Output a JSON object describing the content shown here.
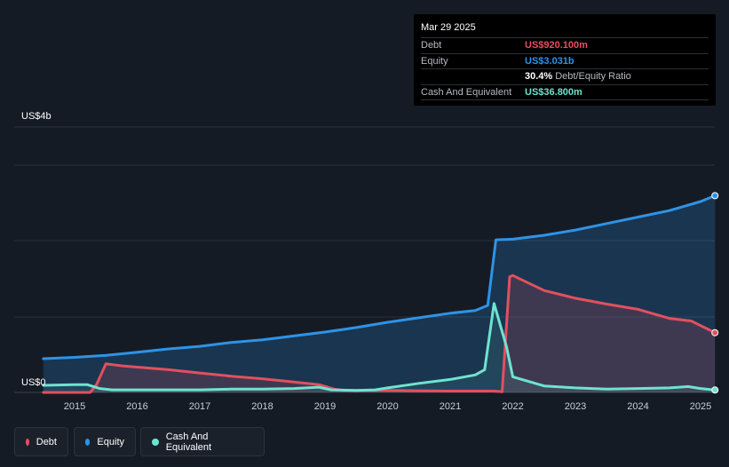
{
  "tooltip": {
    "date": "Mar 29 2025",
    "debt_label": "Debt",
    "debt_value": "US$920.100m",
    "equity_label": "Equity",
    "equity_value": "US$3.031b",
    "ratio_value": "30.4%",
    "ratio_label": "Debt/Equity Ratio",
    "cash_label": "Cash And Equivalent",
    "cash_value": "US$36.800m"
  },
  "legend": {
    "debt": "Debt",
    "equity": "Equity",
    "cash": "Cash And Equivalent"
  },
  "colors": {
    "debt": "#e2505f",
    "equity": "#2e93e6",
    "cash": "#6fe3d0",
    "background": "#151b24"
  },
  "chart_data": {
    "type": "area",
    "ylabel_top": "US$4b",
    "ylabel_bottom": "US$0",
    "ylim": [
      0,
      3.5
    ],
    "xlim": [
      2014.5,
      2025.25
    ],
    "x_ticks": [
      "2015",
      "2016",
      "2017",
      "2018",
      "2019",
      "2020",
      "2021",
      "2022",
      "2023",
      "2024",
      "2025"
    ],
    "grid": true,
    "series": [
      {
        "name": "Equity",
        "unit": "US$b",
        "points": [
          [
            2014.5,
            0.52
          ],
          [
            2015.0,
            0.54
          ],
          [
            2015.5,
            0.57
          ],
          [
            2016.0,
            0.62
          ],
          [
            2016.5,
            0.67
          ],
          [
            2017.0,
            0.71
          ],
          [
            2017.5,
            0.77
          ],
          [
            2018.0,
            0.81
          ],
          [
            2018.5,
            0.87
          ],
          [
            2019.0,
            0.93
          ],
          [
            2019.5,
            1.0
          ],
          [
            2020.0,
            1.08
          ],
          [
            2020.5,
            1.15
          ],
          [
            2021.0,
            1.22
          ],
          [
            2021.4,
            1.26
          ],
          [
            2021.6,
            1.34
          ],
          [
            2021.73,
            2.35
          ],
          [
            2022.0,
            2.36
          ],
          [
            2022.5,
            2.42
          ],
          [
            2023.0,
            2.5
          ],
          [
            2023.5,
            2.6
          ],
          [
            2024.0,
            2.7
          ],
          [
            2024.5,
            2.8
          ],
          [
            2025.0,
            2.94
          ],
          [
            2025.23,
            3.03
          ]
        ]
      },
      {
        "name": "Debt",
        "unit": "US$b",
        "points": [
          [
            2014.5,
            0.0
          ],
          [
            2015.25,
            0.0
          ],
          [
            2015.35,
            0.12
          ],
          [
            2015.5,
            0.44
          ],
          [
            2015.75,
            0.41
          ],
          [
            2016.0,
            0.39
          ],
          [
            2016.5,
            0.35
          ],
          [
            2017.0,
            0.3
          ],
          [
            2017.5,
            0.25
          ],
          [
            2018.0,
            0.21
          ],
          [
            2018.5,
            0.16
          ],
          [
            2018.9,
            0.12
          ],
          [
            2019.15,
            0.05
          ],
          [
            2019.3,
            0.03
          ],
          [
            2020.0,
            0.03
          ],
          [
            2021.0,
            0.02
          ],
          [
            2021.7,
            0.02
          ],
          [
            2021.83,
            0.01
          ],
          [
            2021.95,
            1.78
          ],
          [
            2022.0,
            1.8
          ],
          [
            2022.5,
            1.57
          ],
          [
            2023.0,
            1.45
          ],
          [
            2023.5,
            1.36
          ],
          [
            2024.0,
            1.28
          ],
          [
            2024.5,
            1.14
          ],
          [
            2024.85,
            1.1
          ],
          [
            2025.23,
            0.92
          ]
        ]
      },
      {
        "name": "Cash And Equivalent",
        "unit": "US$b",
        "points": [
          [
            2014.5,
            0.11
          ],
          [
            2015.0,
            0.12
          ],
          [
            2015.2,
            0.12
          ],
          [
            2015.4,
            0.06
          ],
          [
            2015.6,
            0.04
          ],
          [
            2016.0,
            0.04
          ],
          [
            2016.5,
            0.04
          ],
          [
            2017.0,
            0.04
          ],
          [
            2017.5,
            0.05
          ],
          [
            2018.0,
            0.05
          ],
          [
            2018.5,
            0.06
          ],
          [
            2018.9,
            0.08
          ],
          [
            2019.1,
            0.04
          ],
          [
            2019.5,
            0.03
          ],
          [
            2019.8,
            0.04
          ],
          [
            2020.0,
            0.07
          ],
          [
            2020.5,
            0.14
          ],
          [
            2021.0,
            0.2
          ],
          [
            2021.4,
            0.27
          ],
          [
            2021.55,
            0.35
          ],
          [
            2021.7,
            1.37
          ],
          [
            2021.9,
            0.7
          ],
          [
            2022.0,
            0.24
          ],
          [
            2022.5,
            0.1
          ],
          [
            2023.0,
            0.07
          ],
          [
            2023.5,
            0.05
          ],
          [
            2024.0,
            0.06
          ],
          [
            2024.5,
            0.07
          ],
          [
            2024.8,
            0.09
          ],
          [
            2025.0,
            0.06
          ],
          [
            2025.23,
            0.037
          ]
        ]
      }
    ]
  }
}
